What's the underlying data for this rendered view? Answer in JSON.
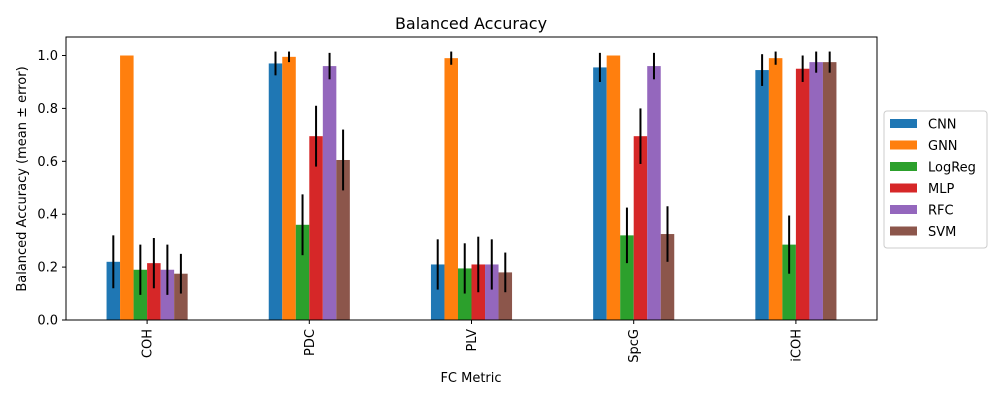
{
  "chart_data": {
    "type": "bar",
    "title": "Balanced Accuracy",
    "xlabel": "FC Metric",
    "ylabel": "Balanced Accuracy (mean ± error)",
    "categories": [
      "COH",
      "PDC",
      "PLV",
      "SpcG",
      "iCOH"
    ],
    "ylim": [
      0,
      1.07
    ],
    "yticks": [
      "0.0",
      "0.2",
      "0.4",
      "0.6",
      "0.8",
      "1.0"
    ],
    "legend_position": "right",
    "series": [
      {
        "name": "CNN",
        "color": "#1f77b4",
        "values": [
          0.22,
          0.97,
          0.21,
          0.955,
          0.945
        ],
        "errors": [
          0.1,
          0.045,
          0.095,
          0.055,
          0.06
        ]
      },
      {
        "name": "GNN",
        "color": "#ff7f0e",
        "values": [
          1.0,
          0.995,
          0.99,
          1.0,
          0.99
        ],
        "errors": [
          0.0,
          0.02,
          0.025,
          0.0,
          0.025
        ]
      },
      {
        "name": "LogReg",
        "color": "#2ca02c",
        "values": [
          0.19,
          0.36,
          0.195,
          0.32,
          0.285
        ],
        "errors": [
          0.095,
          0.115,
          0.095,
          0.105,
          0.11
        ]
      },
      {
        "name": "MLP",
        "color": "#d62728",
        "values": [
          0.215,
          0.695,
          0.21,
          0.695,
          0.95
        ],
        "errors": [
          0.095,
          0.115,
          0.105,
          0.105,
          0.05
        ]
      },
      {
        "name": "RFC",
        "color": "#9467bd",
        "values": [
          0.19,
          0.96,
          0.21,
          0.96,
          0.975
        ],
        "errors": [
          0.095,
          0.05,
          0.095,
          0.05,
          0.04
        ]
      },
      {
        "name": "SVM",
        "color": "#8c564b",
        "values": [
          0.175,
          0.605,
          0.18,
          0.325,
          0.975
        ],
        "errors": [
          0.075,
          0.115,
          0.075,
          0.105,
          0.04
        ]
      }
    ]
  }
}
